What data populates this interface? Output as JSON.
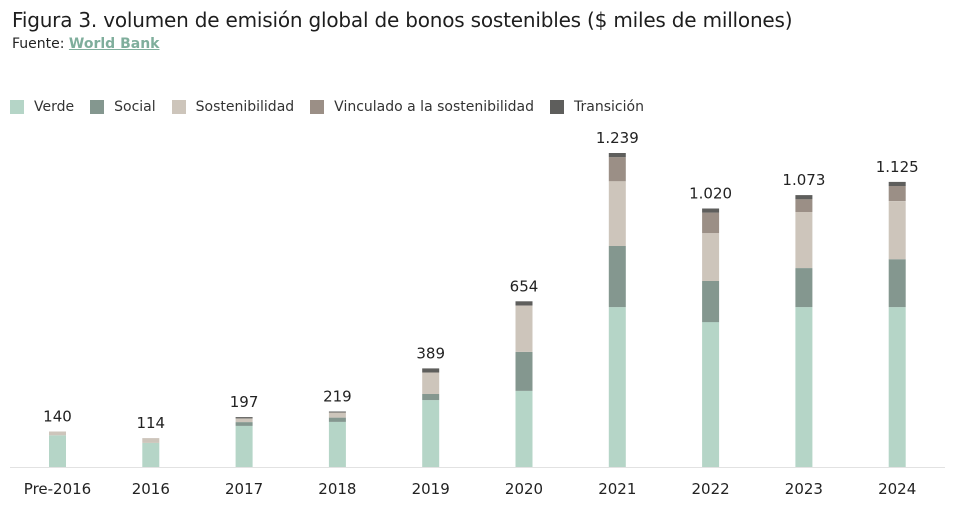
{
  "header": {
    "title": "Figura 3. volumen de emisión global de bonos sostenibles ($ miles de millones)",
    "source_prefix": "Fuente: ",
    "source_link": "World Bank"
  },
  "legend": [
    {
      "label": "Verde",
      "color": "#b5d5c7"
    },
    {
      "label": "Social",
      "color": "#84978f"
    },
    {
      "label": "Sostenibilidad",
      "color": "#cdc5bb"
    },
    {
      "label": "Vinculado a la sostenibilidad",
      "color": "#9b8f86"
    },
    {
      "label": "Transición",
      "color": "#5e5e5c"
    }
  ],
  "chart_data": {
    "type": "bar",
    "stacked": true,
    "title": "Figura 3. volumen de emisión global de bonos sostenibles ($ miles de millones)",
    "xlabel": "",
    "ylabel": "$ miles de millones",
    "ylim": [
      0,
      1300
    ],
    "grid": false,
    "legend_position": "top-left",
    "categories": [
      "Pre-2016",
      "2016",
      "2017",
      "2018",
      "2019",
      "2020",
      "2021",
      "2022",
      "2023",
      "2024"
    ],
    "totals": [
      140,
      114,
      197,
      219,
      389,
      654,
      1239,
      1020,
      1073,
      1125
    ],
    "total_labels": [
      "140",
      "114",
      "197",
      "219",
      "389",
      "654",
      "1.239",
      "1.020",
      "1.073",
      "1.125"
    ],
    "series": [
      {
        "name": "Verde",
        "color": "#b5d5c7",
        "values": [
          125,
          95,
          162,
          178,
          264,
          300,
          631,
          572,
          631,
          631
        ]
      },
      {
        "name": "Social",
        "color": "#84978f",
        "values": [
          0,
          0,
          15,
          17,
          24,
          154,
          241,
          162,
          154,
          189
        ]
      },
      {
        "name": "Sostenibilidad",
        "color": "#cdc5bb",
        "values": [
          15,
          19,
          15,
          20,
          85,
          182,
          256,
          189,
          221,
          229
        ]
      },
      {
        "name": "Vinculado a la sostenibilidad",
        "color": "#9b8f86",
        "values": [
          0,
          0,
          0,
          0,
          0,
          2,
          95,
          81,
          51,
          60
        ]
      },
      {
        "name": "Transición",
        "color": "#5e5e5c",
        "values": [
          0,
          0,
          5,
          4,
          16,
          16,
          16,
          16,
          16,
          16
        ]
      }
    ]
  }
}
